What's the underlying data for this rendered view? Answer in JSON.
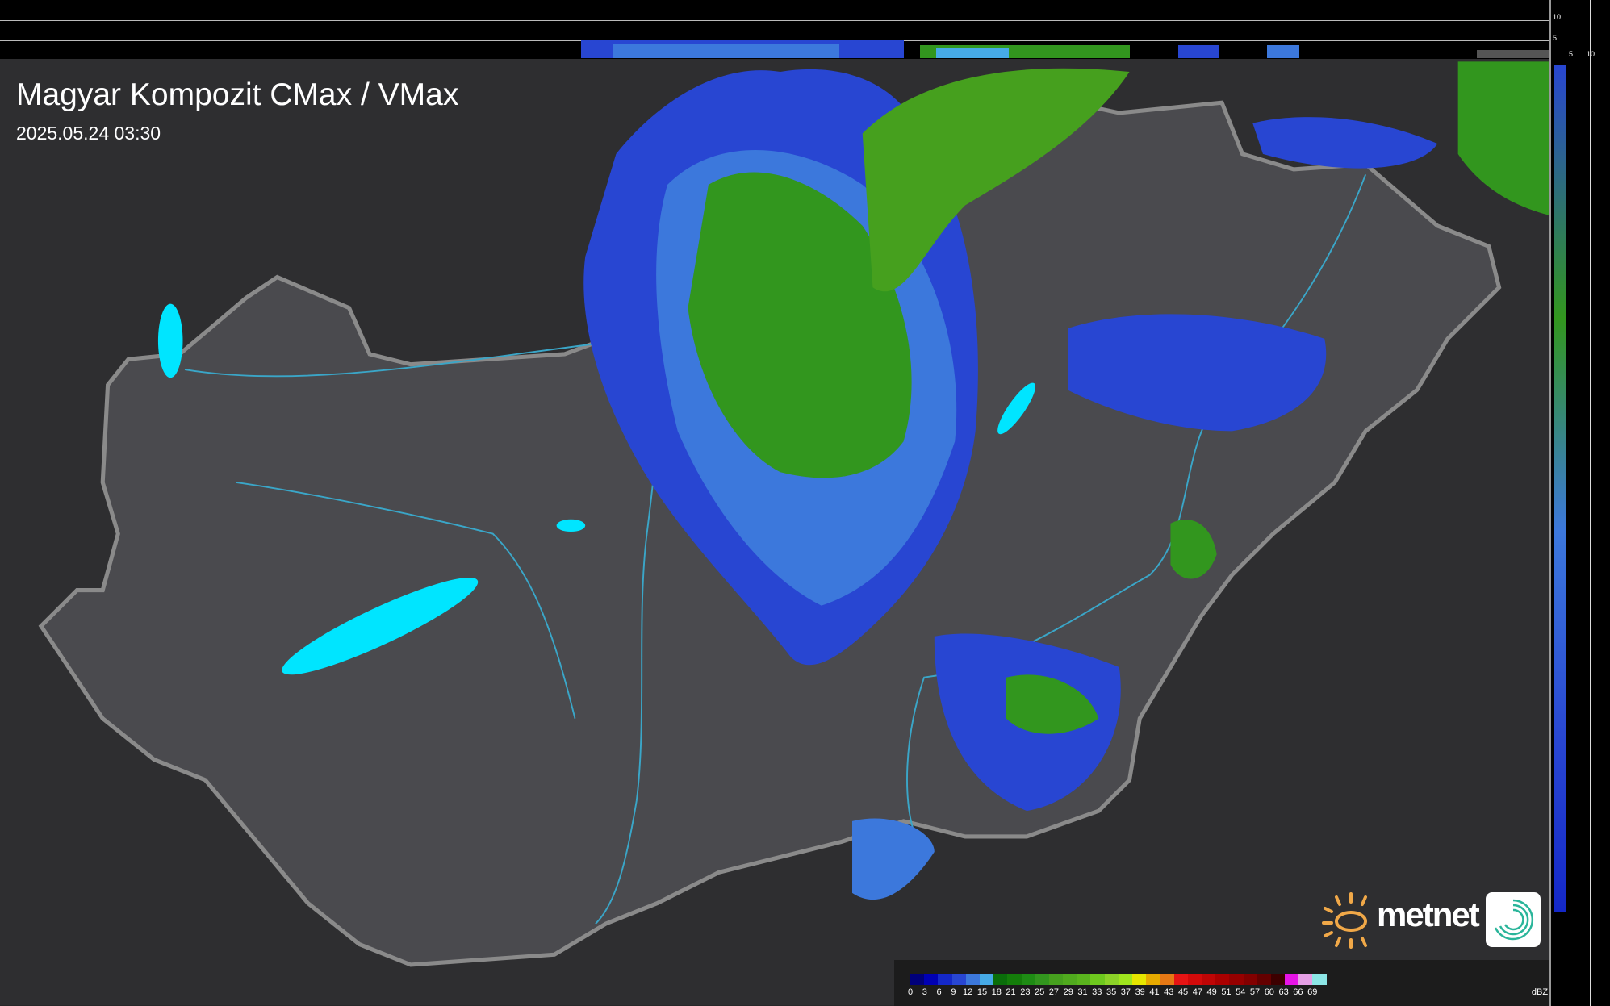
{
  "header": {
    "title": "Magyar Kompozit CMax / VMax",
    "timestamp": "2025.05.24 03:30"
  },
  "side_scale": {
    "vertical_labels": [
      "10",
      "5"
    ],
    "horizontal_labels": [
      "5",
      "10"
    ]
  },
  "logo": {
    "text": "metnet"
  },
  "legend": {
    "unit": "dBZ",
    "labels": [
      "0",
      "3",
      "6",
      "9",
      "12",
      "15",
      "18",
      "21",
      "23",
      "25",
      "27",
      "29",
      "31",
      "33",
      "35",
      "37",
      "39",
      "41",
      "43",
      "45",
      "47",
      "49",
      "51",
      "54",
      "57",
      "60",
      "63",
      "66",
      "69"
    ],
    "colors": [
      "#00007a",
      "#0000b4",
      "#1428c8",
      "#2846d2",
      "#3c78dc",
      "#46aae6",
      "#0a6e0a",
      "#147d0a",
      "#1e8c14",
      "#32961e",
      "#46a01e",
      "#50aa1e",
      "#5ab41e",
      "#6ec81e",
      "#8cd228",
      "#a0e61e",
      "#e6e600",
      "#e6aa00",
      "#e67814",
      "#e61414",
      "#d20a0a",
      "#be0505",
      "#aa0000",
      "#960000",
      "#820000",
      "#640000",
      "#3c0000",
      "#e614e6",
      "#e6a0e6",
      "#8ce6e6"
    ]
  },
  "map_colors": {
    "background": "#2e2e30",
    "country": "#4a4a4e",
    "border": "#8a8a8a",
    "rivers": "#3aa6c8",
    "lakes": "#00e5ff"
  }
}
